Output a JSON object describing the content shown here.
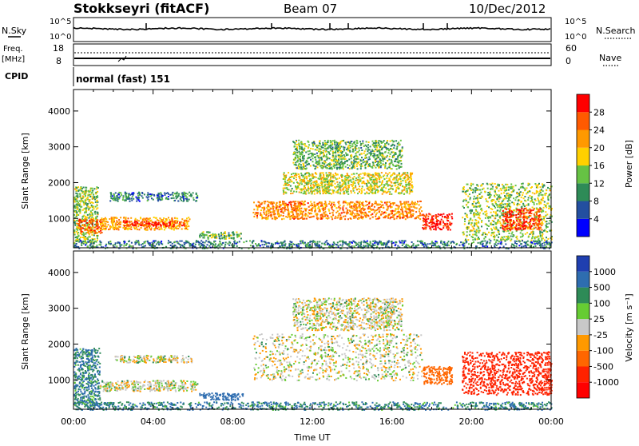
{
  "header": {
    "station": "Stokkseyri (fitACF)",
    "beam": "Beam 07",
    "date": "10/Dec/2012"
  },
  "nsky_panel": {
    "left_label": "N.Sky",
    "right_label": "N.Search",
    "tick_top": "10^5",
    "tick_bottom": "10^0",
    "right_tick_top": "10^5",
    "right_tick_bottom": "10^0"
  },
  "freq_panel": {
    "left_label_1": "Freq.",
    "left_label_2": "[MHz]",
    "right_label": "Nave",
    "left_ticks": [
      "18",
      "8"
    ],
    "right_ticks": [
      "60",
      "0"
    ]
  },
  "cpid_panel": {
    "label": "CPID",
    "value": "normal (fast) 151"
  },
  "power_panel": {
    "ylabel": "Slant Range [km]",
    "yticks": [
      "4000",
      "3000",
      "2000",
      "1000"
    ],
    "colorbar_label": "Power [dB]",
    "colorbar_ticks": [
      "28",
      "24",
      "20",
      "16",
      "12",
      "8",
      "4"
    ],
    "colors": [
      "#0000ff",
      "#234fa0",
      "#2e8b57",
      "#66c244",
      "#ffd000",
      "#ff9900",
      "#ff5a00",
      "#ff0000"
    ]
  },
  "velocity_panel": {
    "ylabel": "Slant Range [km]",
    "yticks": [
      "4000",
      "3000",
      "2000",
      "1000"
    ],
    "colorbar_label": "Velocity [m s⁻¹]",
    "colorbar_ticks": [
      "1000",
      "500",
      "100",
      "25",
      "-25",
      "-100",
      "-500",
      "-1000"
    ],
    "colors": [
      "#1f3fb0",
      "#2e6db0",
      "#2e8b57",
      "#66cc33",
      "#c8c8c8",
      "#ff9900",
      "#ff6600",
      "#ff2200",
      "#ff0000"
    ]
  },
  "xaxis": {
    "label": "Time UT",
    "ticks": [
      "00:00",
      "04:00",
      "08:00",
      "12:00",
      "16:00",
      "20:00",
      "00:00"
    ]
  },
  "chart_data": [
    {
      "type": "heatmap",
      "title": "Stokkseyri (fitACF) Beam 07 10/Dec/2012",
      "xlabel": "Time UT",
      "ylabel": "Slant Range [km]",
      "quantity": "Power [dB]",
      "xlim": [
        0,
        24
      ],
      "ylim": [
        180,
        4600
      ],
      "clim": [
        0,
        30
      ],
      "regions": [
        {
          "t0": 0.0,
          "t1": 1.2,
          "r0": 300,
          "r1": 1900,
          "value": 14
        },
        {
          "t0": 0.2,
          "t1": 1.4,
          "r0": 600,
          "r1": 1000,
          "value": 24
        },
        {
          "t0": 1.3,
          "t1": 5.8,
          "r0": 700,
          "r1": 1050,
          "value": 20
        },
        {
          "t0": 2.4,
          "t1": 5.6,
          "r0": 800,
          "r1": 950,
          "value": 28
        },
        {
          "t0": 1.8,
          "t1": 6.2,
          "r0": 1500,
          "r1": 1750,
          "value": 8
        },
        {
          "t0": 6.3,
          "t1": 8.5,
          "r0": 450,
          "r1": 650,
          "value": 12
        },
        {
          "t0": 9.0,
          "t1": 17.5,
          "r0": 1000,
          "r1": 1500,
          "value": 22
        },
        {
          "t0": 10.5,
          "t1": 17.0,
          "r0": 1700,
          "r1": 2300,
          "value": 16
        },
        {
          "t0": 11.0,
          "t1": 16.5,
          "r0": 2400,
          "r1": 3200,
          "value": 12
        },
        {
          "t0": 17.5,
          "t1": 19.0,
          "r0": 700,
          "r1": 1150,
          "value": 28
        },
        {
          "t0": 19.5,
          "t1": 24.0,
          "r0": 400,
          "r1": 2000,
          "value": 14
        },
        {
          "t0": 21.5,
          "t1": 23.5,
          "r0": 700,
          "r1": 1300,
          "value": 26
        },
        {
          "t0": 0.0,
          "t1": 24.0,
          "r0": 180,
          "r1": 400,
          "value": 8
        }
      ]
    },
    {
      "type": "heatmap",
      "title": "Stokkseyri (fitACF) Beam 07 10/Dec/2012",
      "xlabel": "Time UT",
      "ylabel": "Slant Range [km]",
      "quantity": "Velocity [m s-1]",
      "xlim": [
        0,
        24
      ],
      "ylim": [
        180,
        4600
      ],
      "regions": [
        {
          "t0": 0.0,
          "t1": 1.3,
          "r0": 300,
          "r1": 1900,
          "value": 100
        },
        {
          "t0": 1.3,
          "t1": 6.2,
          "r0": 700,
          "r1": 1000,
          "value": 0
        },
        {
          "t0": 2.0,
          "t1": 6.0,
          "r0": 1500,
          "r1": 1700,
          "value": 0
        },
        {
          "t0": 6.3,
          "t1": 8.5,
          "r0": 450,
          "r1": 650,
          "value": 300
        },
        {
          "t0": 9.0,
          "t1": 17.5,
          "r0": 1000,
          "r1": 2300,
          "value": 0
        },
        {
          "t0": 11.0,
          "t1": 16.5,
          "r0": 2400,
          "r1": 3300,
          "value": 0
        },
        {
          "t0": 17.5,
          "t1": 19.0,
          "r0": 900,
          "r1": 1400,
          "value": -200
        },
        {
          "t0": 19.5,
          "t1": 24.0,
          "r0": 600,
          "r1": 1800,
          "value": -400
        },
        {
          "t0": 0.0,
          "t1": 24.0,
          "r0": 180,
          "r1": 400,
          "value": 100
        }
      ]
    }
  ]
}
